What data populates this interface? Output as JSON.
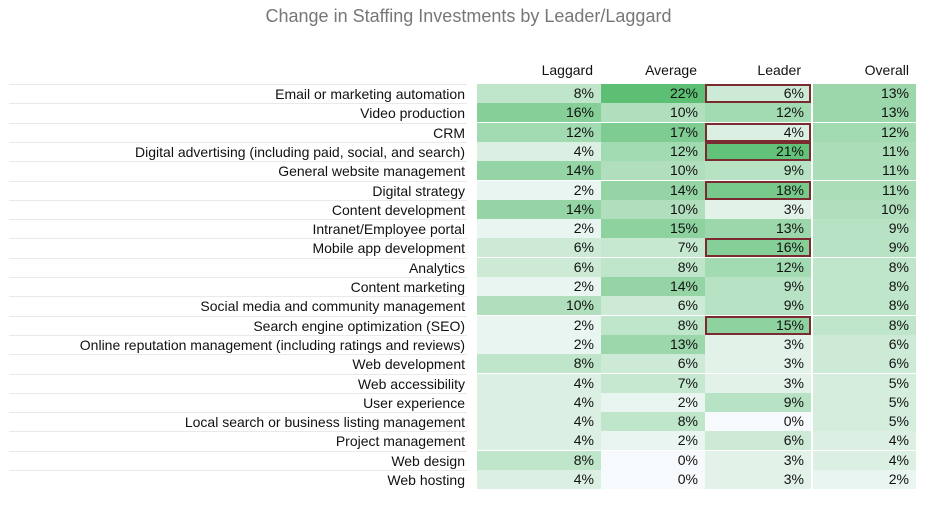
{
  "chart_data": {
    "type": "table",
    "title": "Change in Staffing Investments by Leader/Laggard",
    "columns": [
      "Laggard",
      "Average",
      "Leader",
      "Overall"
    ],
    "rows": [
      {
        "label": "Email or marketing automation",
        "values": [
          "8%",
          "22%",
          "6%",
          "13%"
        ],
        "highlight": [
          false,
          false,
          true,
          false
        ]
      },
      {
        "label": "Video production",
        "values": [
          "16%",
          "10%",
          "12%",
          "13%"
        ],
        "highlight": [
          false,
          false,
          false,
          false
        ]
      },
      {
        "label": "CRM",
        "values": [
          "12%",
          "17%",
          "4%",
          "12%"
        ],
        "highlight": [
          false,
          false,
          true,
          false
        ]
      },
      {
        "label": "Digital advertising (including paid, social, and search)",
        "values": [
          "4%",
          "12%",
          "21%",
          "11%"
        ],
        "highlight": [
          false,
          false,
          true,
          false
        ]
      },
      {
        "label": "General website management",
        "values": [
          "14%",
          "10%",
          "9%",
          "11%"
        ],
        "highlight": [
          false,
          false,
          false,
          false
        ]
      },
      {
        "label": "Digital strategy",
        "values": [
          "2%",
          "14%",
          "18%",
          "11%"
        ],
        "highlight": [
          false,
          false,
          true,
          false
        ]
      },
      {
        "label": "Content development",
        "values": [
          "14%",
          "10%",
          "3%",
          "10%"
        ],
        "highlight": [
          false,
          false,
          false,
          false
        ]
      },
      {
        "label": "Intranet/Employee portal",
        "values": [
          "2%",
          "15%",
          "13%",
          "9%"
        ],
        "highlight": [
          false,
          false,
          false,
          false
        ]
      },
      {
        "label": "Mobile app development",
        "values": [
          "6%",
          "7%",
          "16%",
          "9%"
        ],
        "highlight": [
          false,
          false,
          true,
          false
        ]
      },
      {
        "label": "Analytics",
        "values": [
          "6%",
          "8%",
          "12%",
          "8%"
        ],
        "highlight": [
          false,
          false,
          false,
          false
        ]
      },
      {
        "label": "Content marketing",
        "values": [
          "2%",
          "14%",
          "9%",
          "8%"
        ],
        "highlight": [
          false,
          false,
          false,
          false
        ]
      },
      {
        "label": "Social media and community management",
        "values": [
          "10%",
          "6%",
          "9%",
          "8%"
        ],
        "highlight": [
          false,
          false,
          false,
          false
        ]
      },
      {
        "label": "Search engine optimization (SEO)",
        "values": [
          "2%",
          "8%",
          "15%",
          "8%"
        ],
        "highlight": [
          false,
          false,
          true,
          false
        ]
      },
      {
        "label": "Online reputation management (including ratings and reviews)",
        "values": [
          "2%",
          "13%",
          "3%",
          "6%"
        ],
        "highlight": [
          false,
          false,
          false,
          false
        ]
      },
      {
        "label": "Web development",
        "values": [
          "8%",
          "6%",
          "3%",
          "6%"
        ],
        "highlight": [
          false,
          false,
          false,
          false
        ]
      },
      {
        "label": "Web accessibility",
        "values": [
          "4%",
          "7%",
          "3%",
          "5%"
        ],
        "highlight": [
          false,
          false,
          false,
          false
        ]
      },
      {
        "label": "User experience",
        "values": [
          "4%",
          "2%",
          "9%",
          "5%"
        ],
        "highlight": [
          false,
          false,
          false,
          false
        ]
      },
      {
        "label": "Local search or business listing management",
        "values": [
          "4%",
          "8%",
          "0%",
          "5%"
        ],
        "highlight": [
          false,
          false,
          false,
          false
        ]
      },
      {
        "label": "Project management",
        "values": [
          "4%",
          "2%",
          "6%",
          "4%"
        ],
        "highlight": [
          false,
          false,
          false,
          false
        ]
      },
      {
        "label": "Web design",
        "values": [
          "8%",
          "0%",
          "3%",
          "4%"
        ],
        "highlight": [
          false,
          false,
          false,
          false
        ]
      },
      {
        "label": "Web hosting",
        "values": [
          "4%",
          "0%",
          "3%",
          "2%"
        ],
        "highlight": [
          false,
          false,
          false,
          false
        ]
      }
    ],
    "colors": {
      "high": "#5cbf73",
      "low": "#ffffff",
      "highlight_border": "#7a2b2f"
    }
  }
}
